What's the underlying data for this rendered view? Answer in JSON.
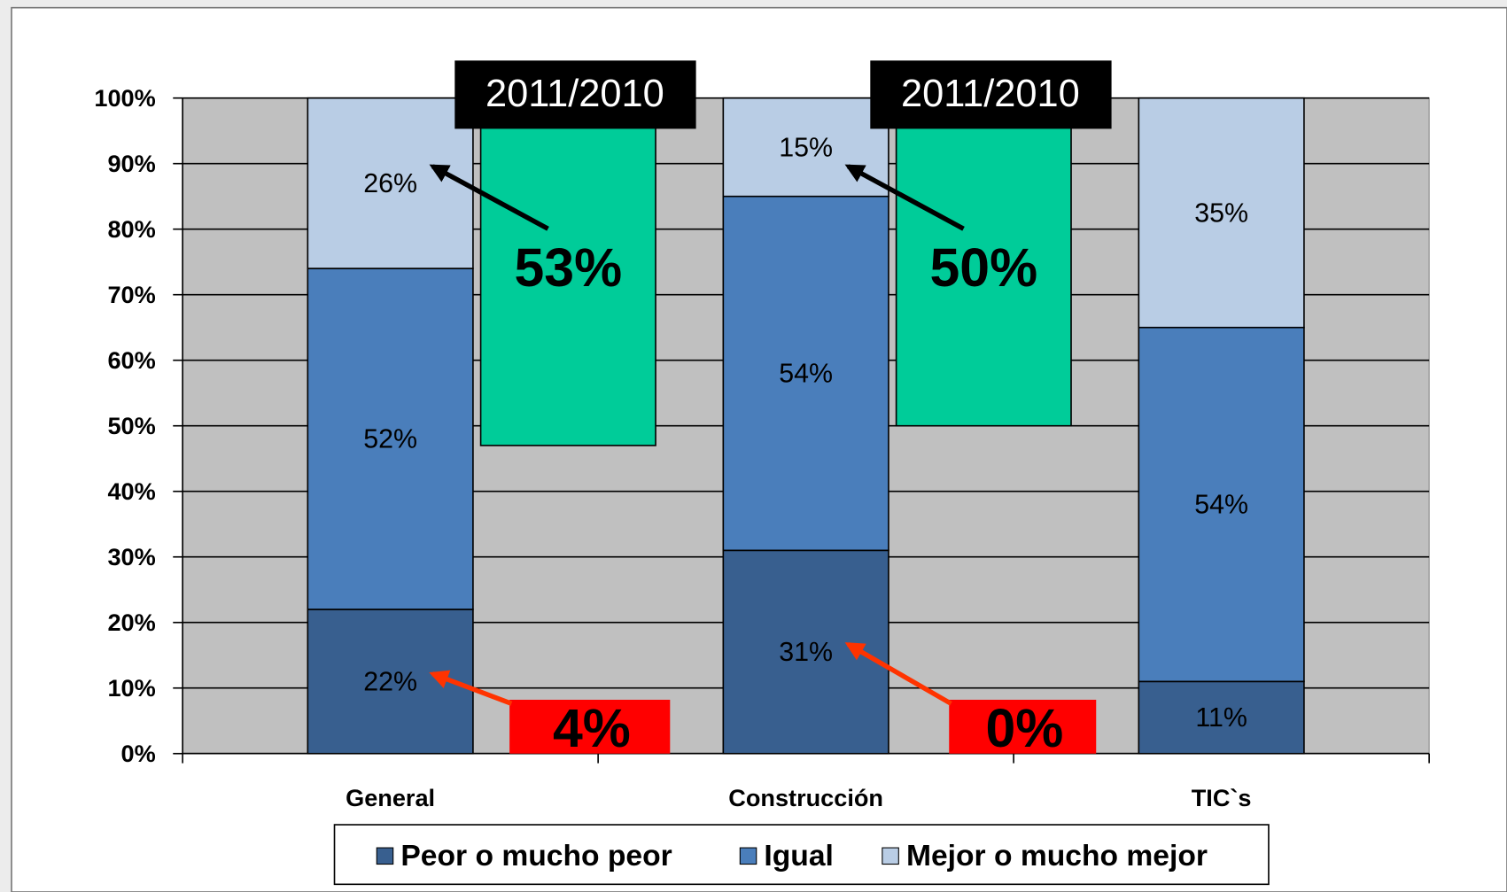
{
  "chart_data": {
    "type": "stacked_bar",
    "categories": [
      "General",
      "Construcción",
      "TIC`s"
    ],
    "series": [
      {
        "name": "Peor o mucho peor",
        "color": "#385f8f",
        "values": [
          22,
          31,
          11
        ],
        "value_labels": [
          "22%",
          "31%",
          "11%"
        ]
      },
      {
        "name": "Igual",
        "color": "#4a7ebb",
        "values": [
          52,
          54,
          54
        ],
        "value_labels": [
          "52%",
          "54%",
          "54%"
        ]
      },
      {
        "name": "Mejor o mucho mejor",
        "color": "#b9cde5",
        "values": [
          26,
          15,
          35
        ],
        "value_labels": [
          "26%",
          "15%",
          "35%"
        ]
      }
    ],
    "ylim": [
      0,
      100
    ],
    "yticks": [
      {
        "value": 0,
        "label": "0%"
      },
      {
        "value": 10,
        "label": "10%"
      },
      {
        "value": 20,
        "label": "20%"
      },
      {
        "value": 30,
        "label": "30%"
      },
      {
        "value": 40,
        "label": "40%"
      },
      {
        "value": 50,
        "label": "50%"
      },
      {
        "value": 60,
        "label": "60%"
      },
      {
        "value": 70,
        "label": "70%"
      },
      {
        "value": 80,
        "label": "80%"
      },
      {
        "value": 90,
        "label": "90%"
      },
      {
        "value": 100,
        "label": "100%"
      }
    ],
    "grid": true,
    "legend": "bottom",
    "annotations": [
      {
        "period": "2011/2010",
        "increase": {
          "value": 53,
          "label": "53%"
        },
        "decrease": {
          "value": 4,
          "label": "4%"
        },
        "increase_color": "#00cc99",
        "decrease_color": "#ff0000"
      },
      {
        "period": "2011/2010",
        "increase": {
          "value": 50,
          "label": "50%"
        },
        "decrease": {
          "value": 0,
          "label": "0%"
        },
        "increase_color": "#00cc99",
        "decrease_color": "#ff0000"
      }
    ]
  }
}
